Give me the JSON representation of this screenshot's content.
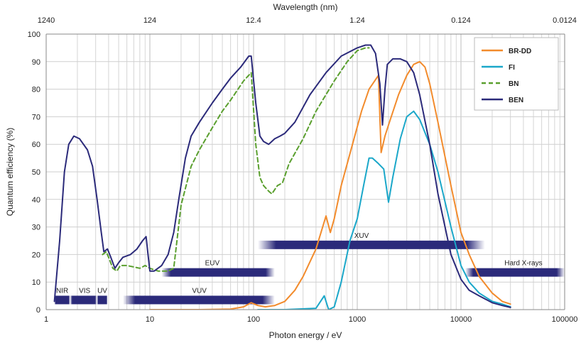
{
  "chart_data": {
    "type": "line",
    "title": "",
    "xlabel": "Photon energy / eV",
    "ylabel": "Quantum efficiency (%)",
    "x2label": "Wavelength (nm)",
    "x_scale": "log",
    "xlim": [
      1,
      100000
    ],
    "ylim": [
      0,
      100
    ],
    "grid": true,
    "legend_position": "top-right",
    "x_tick_labels": [
      "1",
      "10",
      "100",
      "1000",
      "10000",
      "100000"
    ],
    "x_tick_values": [
      1,
      10,
      100,
      1000,
      10000,
      100000
    ],
    "y_tick_labels": [
      "0",
      "10",
      "20",
      "30",
      "40",
      "50",
      "60",
      "70",
      "80",
      "90",
      "100"
    ],
    "y_tick_values": [
      0,
      10,
      20,
      30,
      40,
      50,
      60,
      70,
      80,
      90,
      100
    ],
    "x2_tick_labels": [
      "1240",
      "124",
      "12.4",
      "1.24",
      "0.124",
      "0.0124"
    ],
    "x2_tick_values": [
      1,
      10,
      100,
      1000,
      10000,
      100000
    ],
    "series": [
      {
        "name": "BR-DD",
        "color": "#f28b2c",
        "dash": "solid",
        "points": [
          [
            10,
            0
          ],
          [
            30,
            0
          ],
          [
            60,
            0.2
          ],
          [
            80,
            1
          ],
          [
            95,
            2.5
          ],
          [
            110,
            1.5
          ],
          [
            130,
            1
          ],
          [
            160,
            1.5
          ],
          [
            200,
            3
          ],
          [
            250,
            7
          ],
          [
            300,
            12
          ],
          [
            400,
            22
          ],
          [
            500,
            34
          ],
          [
            550,
            28
          ],
          [
            600,
            33
          ],
          [
            700,
            45
          ],
          [
            900,
            60
          ],
          [
            1100,
            72
          ],
          [
            1300,
            80
          ],
          [
            1600,
            85
          ],
          [
            1700,
            57
          ],
          [
            1850,
            63
          ],
          [
            2000,
            67
          ],
          [
            2500,
            78
          ],
          [
            3000,
            85
          ],
          [
            3500,
            89
          ],
          [
            4000,
            90
          ],
          [
            4500,
            88
          ],
          [
            5000,
            82
          ],
          [
            6000,
            68
          ],
          [
            8000,
            45
          ],
          [
            10000,
            28
          ],
          [
            12000,
            20
          ],
          [
            15000,
            12
          ],
          [
            20000,
            6
          ],
          [
            25000,
            3
          ],
          [
            30000,
            2
          ]
        ]
      },
      {
        "name": "FI",
        "color": "#1aa7c9",
        "dash": "solid",
        "points": [
          [
            110,
            0
          ],
          [
            200,
            0
          ],
          [
            400,
            0.5
          ],
          [
            480,
            5
          ],
          [
            530,
            0
          ],
          [
            600,
            1
          ],
          [
            700,
            10
          ],
          [
            850,
            25
          ],
          [
            1000,
            33
          ],
          [
            1150,
            45
          ],
          [
            1300,
            55
          ],
          [
            1400,
            55
          ],
          [
            1600,
            53
          ],
          [
            1800,
            51
          ],
          [
            2000,
            39
          ],
          [
            2200,
            48
          ],
          [
            2600,
            62
          ],
          [
            3000,
            70
          ],
          [
            3500,
            72
          ],
          [
            4000,
            69
          ],
          [
            5000,
            60
          ],
          [
            6000,
            50
          ],
          [
            8000,
            30
          ],
          [
            10000,
            16
          ],
          [
            12000,
            10
          ],
          [
            15000,
            6
          ],
          [
            20000,
            3
          ],
          [
            25000,
            2
          ],
          [
            30000,
            1
          ]
        ]
      },
      {
        "name": "BN",
        "color": "#5a9f2e",
        "dash": "dashed",
        "points": [
          [
            3.5,
            20
          ],
          [
            3.8,
            21
          ],
          [
            4,
            19
          ],
          [
            4.4,
            15
          ],
          [
            4.8,
            14
          ],
          [
            5.2,
            16
          ],
          [
            6,
            16
          ],
          [
            7,
            15.5
          ],
          [
            8,
            15
          ],
          [
            9,
            16
          ],
          [
            10,
            15
          ],
          [
            12,
            14
          ],
          [
            15,
            14
          ],
          [
            17,
            15
          ],
          [
            20,
            38
          ],
          [
            25,
            52
          ],
          [
            30,
            58
          ],
          [
            40,
            66
          ],
          [
            50,
            72
          ],
          [
            60,
            76
          ],
          [
            80,
            83
          ],
          [
            95,
            86
          ],
          [
            105,
            60
          ],
          [
            115,
            48
          ],
          [
            125,
            45
          ],
          [
            140,
            43
          ],
          [
            150,
            42
          ],
          [
            170,
            45
          ],
          [
            190,
            46
          ],
          [
            220,
            53
          ],
          [
            300,
            62
          ],
          [
            400,
            72
          ],
          [
            600,
            83
          ],
          [
            800,
            90
          ],
          [
            1000,
            94
          ],
          [
            1200,
            95
          ],
          [
            1300,
            95
          ]
        ]
      },
      {
        "name": "BEN",
        "color": "#2b2a7a",
        "dash": "solid",
        "points": [
          [
            1.2,
            3
          ],
          [
            1.35,
            25
          ],
          [
            1.5,
            50
          ],
          [
            1.65,
            60
          ],
          [
            1.85,
            63
          ],
          [
            2.1,
            62
          ],
          [
            2.5,
            58
          ],
          [
            2.8,
            52
          ],
          [
            3.1,
            40
          ],
          [
            3.4,
            28
          ],
          [
            3.6,
            21
          ],
          [
            3.9,
            22
          ],
          [
            4.2,
            19
          ],
          [
            4.6,
            15
          ],
          [
            5,
            17
          ],
          [
            5.5,
            19
          ],
          [
            6.5,
            20
          ],
          [
            7.5,
            22
          ],
          [
            8.5,
            25
          ],
          [
            9.2,
            26.5
          ],
          [
            9.6,
            20
          ],
          [
            10,
            14
          ],
          [
            11,
            14
          ],
          [
            13,
            16
          ],
          [
            15,
            20
          ],
          [
            17,
            28
          ],
          [
            19,
            40
          ],
          [
            22,
            55
          ],
          [
            25,
            63
          ],
          [
            30,
            68
          ],
          [
            40,
            75
          ],
          [
            50,
            80
          ],
          [
            60,
            84
          ],
          [
            75,
            88
          ],
          [
            90,
            92
          ],
          [
            95,
            92
          ],
          [
            105,
            75
          ],
          [
            115,
            63
          ],
          [
            125,
            61
          ],
          [
            140,
            60
          ],
          [
            160,
            62
          ],
          [
            180,
            63
          ],
          [
            200,
            64
          ],
          [
            250,
            68
          ],
          [
            350,
            78
          ],
          [
            500,
            86
          ],
          [
            700,
            92
          ],
          [
            1000,
            95
          ],
          [
            1200,
            96
          ],
          [
            1350,
            96
          ],
          [
            1500,
            93
          ],
          [
            1650,
            82
          ],
          [
            1750,
            67
          ],
          [
            1850,
            80
          ],
          [
            1950,
            89
          ],
          [
            2200,
            91
          ],
          [
            2600,
            91
          ],
          [
            3000,
            90
          ],
          [
            3500,
            86
          ],
          [
            4000,
            78
          ],
          [
            5000,
            60
          ],
          [
            6000,
            42
          ],
          [
            8000,
            20
          ],
          [
            10000,
            11
          ],
          [
            12000,
            7
          ],
          [
            15000,
            5
          ],
          [
            20000,
            2.5
          ],
          [
            25000,
            1.5
          ],
          [
            30000,
            0.8
          ]
        ]
      }
    ],
    "bands": [
      {
        "label": "NIR",
        "x_start": 1.2,
        "x_end": 1.7,
        "y": 3.5
      },
      {
        "label": "VIS",
        "x_start": 1.7,
        "x_end": 3.1,
        "y": 3.5
      },
      {
        "label": "UV",
        "x_start": 3.1,
        "x_end": 3.9,
        "y": 3.5
      },
      {
        "label": "VUV",
        "x_start": 5.5,
        "x_end": 160,
        "y": 3.5
      },
      {
        "label": "EUV",
        "x_start": 13,
        "x_end": 160,
        "y": 13.5
      },
      {
        "label": "XUV",
        "x_start": 110,
        "x_end": 17000,
        "y": 23.5
      },
      {
        "label": "Hard X-rays",
        "x_start": 11000,
        "x_end": 100000,
        "y": 13.5
      }
    ]
  }
}
